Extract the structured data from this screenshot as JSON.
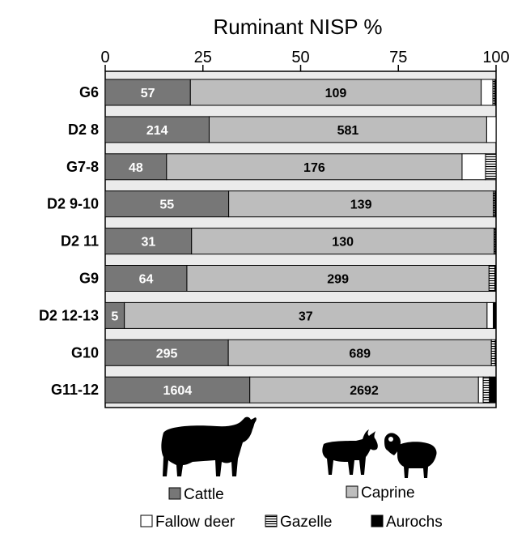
{
  "chart_data": {
    "type": "bar",
    "orientation": "horizontal",
    "stacked": true,
    "title": "Ruminant NISP %",
    "xlim": [
      0,
      100
    ],
    "xticks": [
      0,
      25,
      50,
      75,
      100
    ],
    "categories": [
      "G6",
      "D2 8",
      "G7-8",
      "D2 9-10",
      "D2 11",
      "G9",
      "D2 12-13",
      "G10",
      "G11-12"
    ],
    "series": [
      {
        "name": "Cattle",
        "color": "#777777",
        "label_color": "#ffffff",
        "values": [
          21.8,
          26.6,
          15.7,
          31.6,
          22.1,
          20.9,
          4.9,
          31.5,
          37.0
        ],
        "labels": [
          "57",
          "214",
          "48",
          "55",
          "31",
          "64",
          "5",
          "295",
          "1604"
        ]
      },
      {
        "name": "Caprine",
        "color": "#bdbdbd",
        "label_color": "#000000",
        "values": [
          74.4,
          71.0,
          75.6,
          67.7,
          77.4,
          77.3,
          92.8,
          67.3,
          58.5
        ],
        "labels": [
          "109",
          "581",
          "176",
          "139",
          "130",
          "299",
          "37",
          "689",
          "2692"
        ]
      },
      {
        "name": "Fallow deer",
        "color": "#ffffff",
        "values": [
          3.0,
          2.4,
          6.0,
          0.0,
          0.0,
          0.0,
          1.6,
          0.0,
          1.2
        ]
      },
      {
        "name": "Gazelle",
        "color": "hatched",
        "values": [
          0.5,
          0.0,
          2.7,
          0.4,
          0.3,
          1.5,
          0.0,
          1.0,
          1.6
        ]
      },
      {
        "name": "Aurochs",
        "color": "#000000",
        "values": [
          0.3,
          0.0,
          0.0,
          0.3,
          0.2,
          0.3,
          0.7,
          0.2,
          1.7
        ]
      }
    ],
    "legend_placement": "bottom",
    "legend": [
      "Cattle",
      "Caprine",
      "Fallow deer",
      "Gazelle",
      "Aurochs"
    ],
    "icons": [
      "cattle-icon",
      "goat-icon",
      "sheep-icon"
    ],
    "grid": false
  }
}
